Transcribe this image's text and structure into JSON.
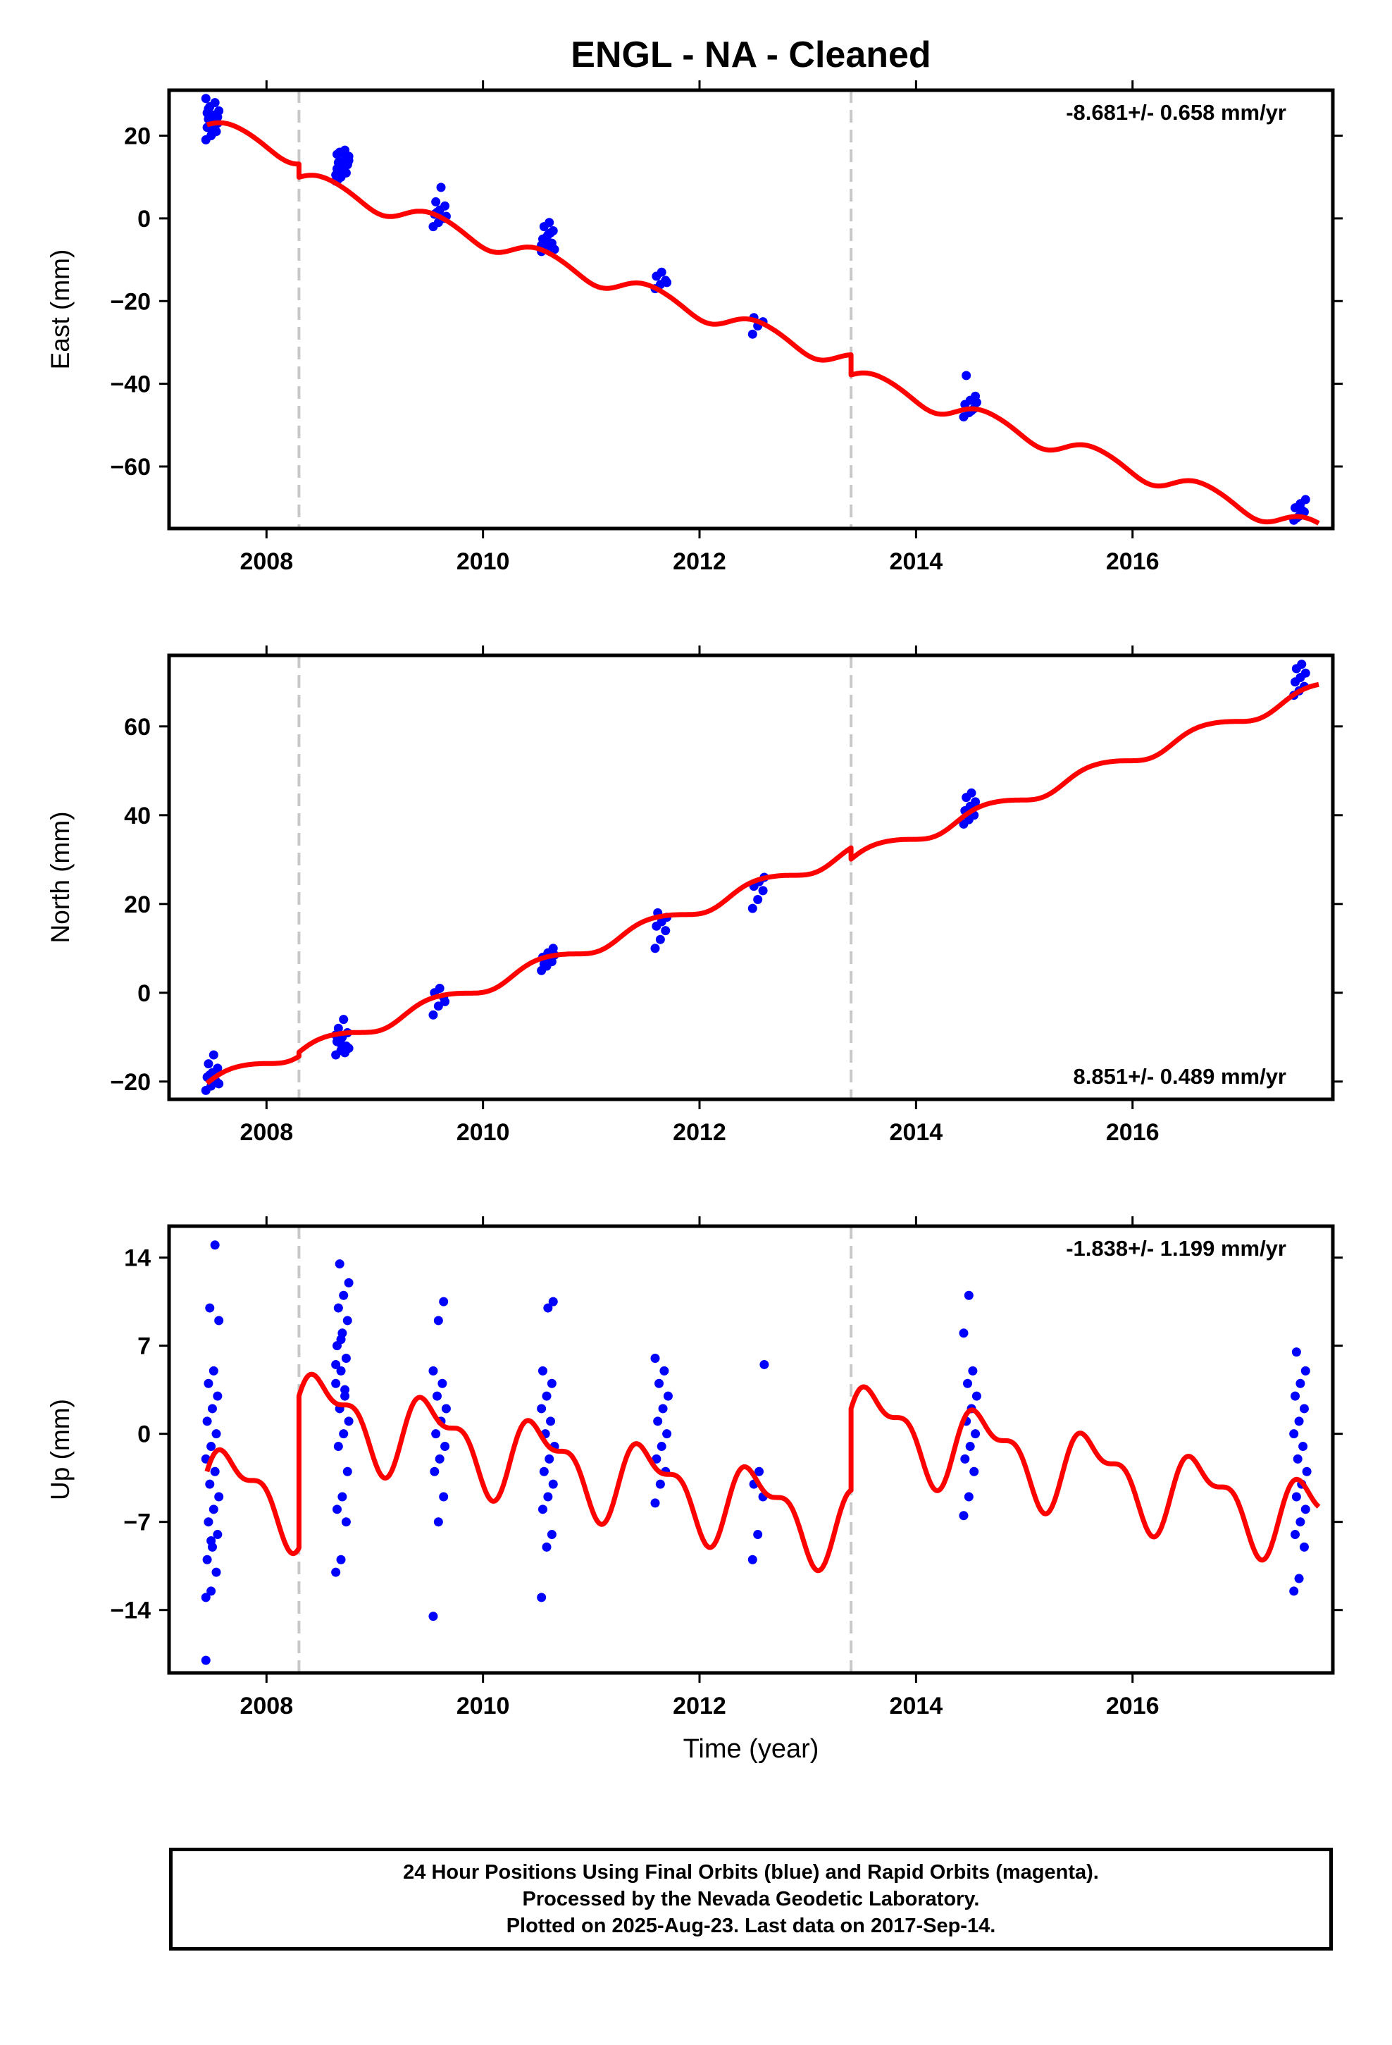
{
  "title": "ENGL  - NA - Cleaned",
  "colors": {
    "data_points": "#0000ff",
    "model_curve": "#ff0000",
    "break_line": "#c8c8c8",
    "frame": "#000000"
  },
  "chart_data": [
    {
      "type": "scatter",
      "component": "East",
      "ylabel": "East (mm)",
      "xlabel": "",
      "rate_label": "-8.681+/- 0.658 mm/yr",
      "rate_position": "top-right",
      "xlim": [
        2007.1,
        2017.85
      ],
      "ylim": [
        -75,
        31
      ],
      "xticks": [
        2008,
        2010,
        2012,
        2014,
        2016
      ],
      "yticks": [
        20,
        0,
        -20,
        -40,
        -60
      ],
      "breaks": [
        2008.3,
        2013.4
      ],
      "model": {
        "rate": -8.681,
        "offsets": {
          "2007.45": 22.5,
          "2008.3": 9.8,
          "2013.4": -38.0
        },
        "seasonal_amplitude": 2.2
      },
      "clusters": [
        {
          "t": 2007.5,
          "values": [
            19,
            20,
            21,
            22,
            22.5,
            23,
            24,
            25,
            26,
            27,
            28,
            29,
            21.5,
            23.5,
            25.5,
            20.5,
            24.5,
            26.5
          ]
        },
        {
          "t": 2008.7,
          "values": [
            9,
            10,
            11,
            12,
            12.5,
            13,
            13.5,
            14,
            15,
            16,
            16.5,
            10.5,
            11.5,
            14.5,
            15.5,
            12,
            13,
            9.5,
            16,
            14
          ]
        },
        {
          "t": 2009.6,
          "values": [
            -2,
            -1,
            0,
            1,
            2,
            3,
            4,
            7.5,
            0.5,
            1.5
          ]
        },
        {
          "t": 2010.6,
          "values": [
            -8,
            -7,
            -6,
            -5,
            -4,
            -3,
            -2,
            -1,
            -7.5,
            -5.5,
            -3.5,
            -6.5,
            -4.5
          ]
        },
        {
          "t": 2011.65,
          "values": [
            -17,
            -16,
            -15,
            -14,
            -13,
            -15.5
          ]
        },
        {
          "t": 2012.55,
          "values": [
            -28,
            -26,
            -25,
            -24
          ]
        },
        {
          "t": 2014.5,
          "values": [
            -48,
            -47,
            -46,
            -45,
            -44,
            -43,
            -38,
            -46.5,
            -44.5
          ]
        },
        {
          "t": 2017.55,
          "values": [
            -73,
            -72,
            -71,
            -70,
            -69,
            -68,
            -72.5,
            -70.5
          ]
        }
      ]
    },
    {
      "type": "scatter",
      "component": "North",
      "ylabel": "North (mm)",
      "xlabel": "",
      "rate_label": "8.851+/- 0.489 mm/yr",
      "rate_position": "bottom-right",
      "xlim": [
        2007.1,
        2017.85
      ],
      "ylim": [
        -24,
        76
      ],
      "xticks": [
        2008,
        2010,
        2012,
        2014,
        2016
      ],
      "yticks": [
        60,
        40,
        20,
        0,
        -20
      ],
      "breaks": [
        2008.3,
        2013.4
      ],
      "model": {
        "rate": 8.851,
        "offsets": {
          "2007.45": -20.5,
          "2008.3": -13.5,
          "2013.4": 30.0
        },
        "seasonal_amplitude": 1.5
      },
      "clusters": [
        {
          "t": 2007.5,
          "values": [
            -22,
            -21,
            -20,
            -19,
            -18,
            -17,
            -16,
            -14,
            -20.5,
            -18.5
          ]
        },
        {
          "t": 2008.7,
          "values": [
            -14,
            -13,
            -12,
            -11,
            -10,
            -9,
            -8,
            -6,
            -12.5,
            -10.5,
            -13.5,
            -9.5,
            -11.5
          ]
        },
        {
          "t": 2009.6,
          "values": [
            -5,
            -3,
            -1,
            0,
            1,
            -2
          ]
        },
        {
          "t": 2010.6,
          "values": [
            5,
            6,
            7,
            8,
            9,
            10,
            6.5,
            7.5,
            8.5
          ]
        },
        {
          "t": 2011.65,
          "values": [
            10,
            12,
            14,
            15,
            16,
            17,
            18
          ]
        },
        {
          "t": 2012.55,
          "values": [
            19,
            21,
            23,
            24,
            25,
            26
          ]
        },
        {
          "t": 2014.5,
          "values": [
            38,
            39,
            40,
            41,
            42,
            43,
            44,
            45
          ]
        },
        {
          "t": 2017.55,
          "values": [
            67,
            68,
            69,
            70,
            71,
            72,
            73,
            74
          ]
        }
      ]
    },
    {
      "type": "scatter",
      "component": "Up",
      "ylabel": "Up (mm)",
      "xlabel": "Time (year)",
      "rate_label": "-1.838+/- 1.199 mm/yr",
      "rate_position": "top-right",
      "xlim": [
        2007.1,
        2017.85
      ],
      "ylim": [
        -19,
        16.5
      ],
      "xticks": [
        2008,
        2010,
        2012,
        2014,
        2016
      ],
      "yticks": [
        14,
        7,
        0,
        -7,
        -14
      ],
      "breaks": [
        2008.3,
        2013.4
      ],
      "model": {
        "rate": -1.838,
        "offsets": {
          "2007.45": -4.0,
          "2008.3": 2.0,
          "2013.4": 1.0
        },
        "seasonal_amplitude": 2.8
      },
      "clusters": [
        {
          "t": 2007.5,
          "values": [
            -18,
            -12.5,
            -11,
            -10,
            -9,
            -8,
            -7,
            -6,
            -5,
            -4,
            -3,
            -2,
            -1,
            0,
            1,
            2,
            3,
            4,
            5,
            9,
            10,
            15,
            -13,
            -8.5
          ]
        },
        {
          "t": 2008.7,
          "values": [
            -11,
            -10,
            -7,
            -6,
            -5,
            -3,
            -1,
            0,
            1,
            2,
            3,
            4,
            5,
            6,
            7,
            8,
            9,
            10,
            11,
            12,
            13.5,
            3.5,
            5.5,
            7.5
          ]
        },
        {
          "t": 2009.6,
          "values": [
            -14.5,
            -7,
            -5,
            -3,
            -2,
            -1,
            0,
            1,
            2,
            3,
            4,
            5,
            9,
            10.5
          ]
        },
        {
          "t": 2010.6,
          "values": [
            -13,
            -9,
            -8,
            -6,
            -5,
            -4,
            -3,
            -2,
            -1,
            0,
            1,
            2,
            3,
            4,
            5,
            10,
            10.5
          ]
        },
        {
          "t": 2011.65,
          "values": [
            -5.5,
            -4,
            -3,
            -2,
            -1,
            0,
            1,
            2,
            3,
            4,
            5,
            6
          ]
        },
        {
          "t": 2012.55,
          "values": [
            -10,
            -8,
            -5,
            -4,
            -3,
            5.5
          ]
        },
        {
          "t": 2014.5,
          "values": [
            -6.5,
            -5,
            -3,
            -2,
            -1,
            0,
            1,
            2,
            3,
            4,
            5,
            8,
            11
          ]
        },
        {
          "t": 2017.55,
          "values": [
            -12.5,
            -11.5,
            -9,
            -8,
            -7,
            -6,
            -5,
            -4,
            -3,
            -2,
            -1,
            0,
            1,
            2,
            3,
            4,
            5,
            6.5
          ]
        }
      ]
    }
  ],
  "footer": {
    "line1": "24 Hour Positions Using Final Orbits (blue) and Rapid Orbits (magenta).",
    "line2": "Processed by the Nevada Geodetic Laboratory.",
    "line3": "Plotted on 2025-Aug-23. Last data on 2017-Sep-14."
  }
}
